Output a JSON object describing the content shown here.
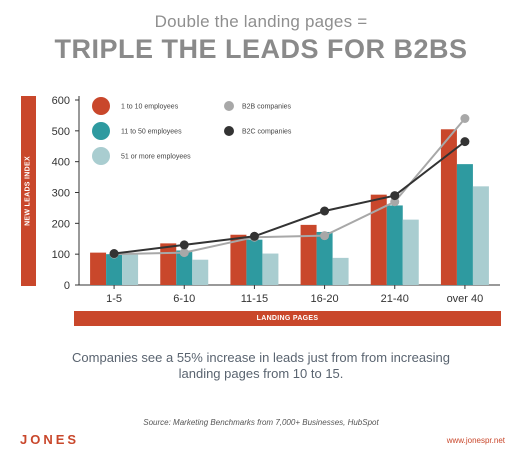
{
  "header": {
    "subtitle": "Double the landing pages =",
    "title": "TRIPLE THE LEADS FOR B2BS"
  },
  "caption": "Companies see a 55% increase in leads just from from increasing landing pages from 10 to 15.",
  "source": "Source: Marketing Benchmarks from 7,000+ Businesses, HubSpot",
  "footer": {
    "brand": "JONES",
    "url": "www.jonespr.net"
  },
  "colors": {
    "accent": "#c9472b",
    "bar_series_1": "#c9472b",
    "bar_series_2": "#2e9aa0",
    "bar_series_3": "#a9cdd0",
    "line_b2b": "#a8a8a8",
    "line_b2c": "#333333"
  },
  "chart_data": {
    "type": "bar",
    "title": "",
    "xlabel": "LANDING PAGES",
    "ylabel": "NEW LEADS INDEX",
    "categories": [
      "1-5",
      "6-10",
      "11-15",
      "16-20",
      "21-40",
      "over 40"
    ],
    "ylim": [
      0,
      600
    ],
    "yticks": [
      0,
      100,
      200,
      300,
      400,
      500,
      600
    ],
    "grid": false,
    "legend_position": "top-left",
    "series": [
      {
        "name": "1 to 10 employees",
        "kind": "bar",
        "color": "#c9472b",
        "values": [
          105,
          135,
          163,
          195,
          293,
          505
        ]
      },
      {
        "name": "11 to 50 employees",
        "kind": "bar",
        "color": "#2e9aa0",
        "values": [
          100,
          112,
          147,
          172,
          258,
          392
        ]
      },
      {
        "name": "51 or more employees",
        "kind": "bar",
        "color": "#a9cdd0",
        "values": [
          100,
          82,
          102,
          88,
          212,
          320
        ]
      },
      {
        "name": "B2B companies",
        "kind": "line",
        "color": "#a8a8a8",
        "values": [
          100,
          105,
          155,
          160,
          270,
          540
        ]
      },
      {
        "name": "B2C companies",
        "kind": "line",
        "color": "#333333",
        "values": [
          102,
          130,
          158,
          240,
          290,
          465
        ]
      }
    ]
  }
}
